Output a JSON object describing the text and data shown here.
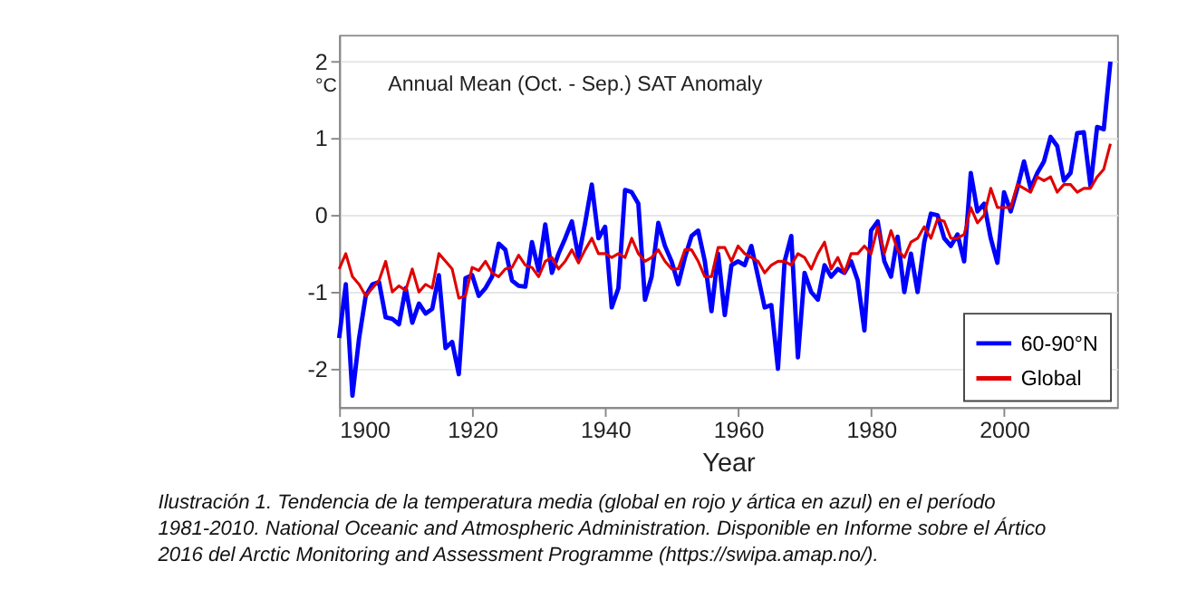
{
  "chart_data": {
    "type": "line",
    "title": "Annual Mean (Oct. - Sep.) SAT Anomaly",
    "xlabel": "Year",
    "ylabel": "°C",
    "x": [
      1900,
      1901,
      1902,
      1903,
      1904,
      1905,
      1906,
      1907,
      1908,
      1909,
      1910,
      1911,
      1912,
      1913,
      1914,
      1915,
      1916,
      1917,
      1918,
      1919,
      1920,
      1921,
      1922,
      1923,
      1924,
      1925,
      1926,
      1927,
      1928,
      1929,
      1930,
      1931,
      1932,
      1933,
      1934,
      1935,
      1936,
      1937,
      1938,
      1939,
      1940,
      1941,
      1942,
      1943,
      1944,
      1945,
      1946,
      1947,
      1948,
      1949,
      1950,
      1951,
      1952,
      1953,
      1954,
      1955,
      1956,
      1957,
      1958,
      1959,
      1960,
      1961,
      1962,
      1963,
      1964,
      1965,
      1966,
      1967,
      1968,
      1969,
      1970,
      1971,
      1972,
      1973,
      1974,
      1975,
      1976,
      1977,
      1978,
      1979,
      1980,
      1981,
      1982,
      1983,
      1984,
      1985,
      1986,
      1987,
      1988,
      1989,
      1990,
      1991,
      1992,
      1993,
      1994,
      1995,
      1996,
      1997,
      1998,
      1999,
      2000,
      2001,
      2002,
      2003,
      2004,
      2005,
      2006,
      2007,
      2008,
      2009,
      2010,
      2011,
      2012,
      2013,
      2014,
      2015,
      2016
    ],
    "series": [
      {
        "name": "60-90°N",
        "color": "#0000ff",
        "values": [
          -1.6,
          -0.9,
          -2.35,
          -1.6,
          -1.05,
          -0.9,
          -0.87,
          -1.33,
          -1.35,
          -1.42,
          -0.95,
          -1.4,
          -1.15,
          -1.28,
          -1.22,
          -0.78,
          -1.73,
          -1.65,
          -2.07,
          -0.82,
          -0.78,
          -1.05,
          -0.95,
          -0.8,
          -0.37,
          -0.45,
          -0.85,
          -0.92,
          -0.93,
          -0.35,
          -0.72,
          -0.12,
          -0.75,
          -0.5,
          -0.3,
          -0.08,
          -0.55,
          -0.1,
          0.4,
          -0.3,
          -0.15,
          -1.2,
          -0.95,
          0.33,
          0.3,
          0.15,
          -1.1,
          -0.8,
          -0.1,
          -0.4,
          -0.6,
          -0.9,
          -0.55,
          -0.27,
          -0.2,
          -0.6,
          -1.25,
          -0.5,
          -1.3,
          -0.65,
          -0.6,
          -0.65,
          -0.4,
          -0.8,
          -1.2,
          -1.17,
          -2.0,
          -0.6,
          -0.27,
          -1.85,
          -0.75,
          -1.0,
          -1.1,
          -0.65,
          -0.8,
          -0.7,
          -0.75,
          -0.6,
          -0.85,
          -1.5,
          -0.2,
          -0.08,
          -0.6,
          -0.8,
          -0.28,
          -1.0,
          -0.5,
          -1.0,
          -0.35,
          0.02,
          0.0,
          -0.3,
          -0.4,
          -0.25,
          -0.6,
          0.55,
          0.05,
          0.15,
          -0.3,
          -0.62,
          0.3,
          0.05,
          0.35,
          0.7,
          0.35,
          0.55,
          0.7,
          1.02,
          0.9,
          0.45,
          0.55,
          1.07,
          1.08,
          0.38,
          1.15,
          1.12,
          2.0
        ]
      },
      {
        "name": "Global",
        "color": "#e00000",
        "values": [
          -0.7,
          -0.5,
          -0.8,
          -0.9,
          -1.05,
          -0.95,
          -0.85,
          -0.6,
          -1.0,
          -0.92,
          -0.98,
          -0.7,
          -1.0,
          -0.9,
          -0.95,
          -0.5,
          -0.6,
          -0.7,
          -1.08,
          -1.05,
          -0.68,
          -0.72,
          -0.6,
          -0.75,
          -0.8,
          -0.7,
          -0.68,
          -0.52,
          -0.65,
          -0.68,
          -0.8,
          -0.6,
          -0.55,
          -0.7,
          -0.6,
          -0.45,
          -0.62,
          -0.45,
          -0.3,
          -0.5,
          -0.5,
          -0.55,
          -0.5,
          -0.55,
          -0.3,
          -0.5,
          -0.6,
          -0.55,
          -0.45,
          -0.6,
          -0.7,
          -0.7,
          -0.45,
          -0.45,
          -0.6,
          -0.8,
          -0.8,
          -0.42,
          -0.42,
          -0.6,
          -0.4,
          -0.5,
          -0.55,
          -0.6,
          -0.75,
          -0.65,
          -0.6,
          -0.6,
          -0.65,
          -0.5,
          -0.55,
          -0.7,
          -0.5,
          -0.35,
          -0.7,
          -0.55,
          -0.75,
          -0.5,
          -0.5,
          -0.4,
          -0.5,
          -0.15,
          -0.5,
          -0.2,
          -0.45,
          -0.55,
          -0.35,
          -0.3,
          -0.15,
          -0.3,
          -0.05,
          -0.08,
          -0.3,
          -0.3,
          -0.25,
          0.1,
          -0.1,
          0.0,
          0.35,
          0.1,
          0.1,
          0.1,
          0.4,
          0.35,
          0.3,
          0.5,
          0.45,
          0.5,
          0.3,
          0.4,
          0.4,
          0.3,
          0.35,
          0.35,
          0.5,
          0.6,
          0.93
        ]
      }
    ],
    "xlim": [
      1900,
      2017
    ],
    "xticks": [
      1900,
      1920,
      1940,
      1960,
      1980,
      2000
    ],
    "ylim": [
      -2.5,
      2.35
    ],
    "yticks": [
      -2,
      -1,
      0,
      1,
      2
    ],
    "grid": "y",
    "legend": "bottom right",
    "line_style": "solid",
    "marker": "none",
    "annotations": [
      "Ilustración 1. Tendencia de la temperatura media (global en rojo y ártica en azul) en el período 1981-2010. National Oceanic and Atmospheric Administration. Disponible en Informe sobre el Ártico 2016 del Arctic Monitoring and Assessment Programme (https://swipa.amap.no/)."
    ]
  }
}
